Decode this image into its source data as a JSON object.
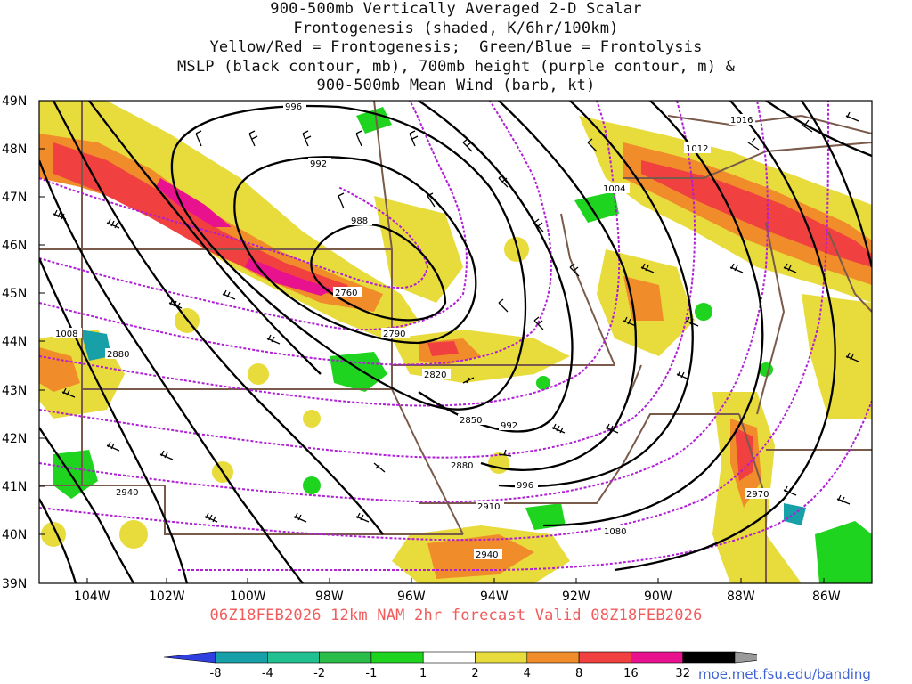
{
  "title_lines": [
    "900-500mb Vertically Averaged 2-D Scalar",
    "Frontogenesis (shaded, K/6hr/100km)",
    "Yellow/Red = Frontogenesis;  Green/Blue = Frontolysis",
    "MSLP (black contour, mb), 700mb height (purple contour, m) &",
    "900-500mb Mean Wind (barb, kt)"
  ],
  "lat_labels": [
    "49N",
    "48N",
    "47N",
    "46N",
    "45N",
    "44N",
    "43N",
    "42N",
    "41N",
    "40N",
    "39N"
  ],
  "lon_labels": [
    "104W",
    "102W",
    "100W",
    "98W",
    "96W",
    "94W",
    "92W",
    "90W",
    "88W",
    "86W"
  ],
  "mslp_labels": [
    "996",
    "992",
    "988",
    "1004",
    "1008",
    "992",
    "996",
    "1080",
    "1016",
    "1012"
  ],
  "height_labels": [
    "2760",
    "2790",
    "2820",
    "2850",
    "2880",
    "2910",
    "2940",
    "2880",
    "2940",
    "2970"
  ],
  "footer": "06Z18FEB2026 12km NAM 2hr forecast Valid 08Z18FEB2026",
  "colorbar": {
    "ticks": [
      "-8",
      "-4",
      "-2",
      "-1",
      "1",
      "2",
      "4",
      "8",
      "16",
      "32"
    ],
    "colors": [
      "#2f3fe0",
      "#17a0a8",
      "#20c090",
      "#2bbd4a",
      "#1ed41e",
      "#ffffff",
      "#e8dc3c",
      "#f08c2a",
      "#f04040",
      "#e8118e",
      "#000000",
      "#9a9a9a"
    ]
  },
  "url": "moe.met.fsu.edu/banding",
  "colors": {
    "frontogenesis_yellow": "#e8dc3c",
    "frontogenesis_orange": "#f08c2a",
    "frontogenesis_red": "#f04040",
    "frontogenesis_magenta": "#e8118e",
    "frontolysis_green": "#1ed41e",
    "frontolysis_teal": "#17a0a8",
    "mslp_contour": "#000000",
    "height_contour": "#b01ed6",
    "borders": "#7a5a4a"
  }
}
